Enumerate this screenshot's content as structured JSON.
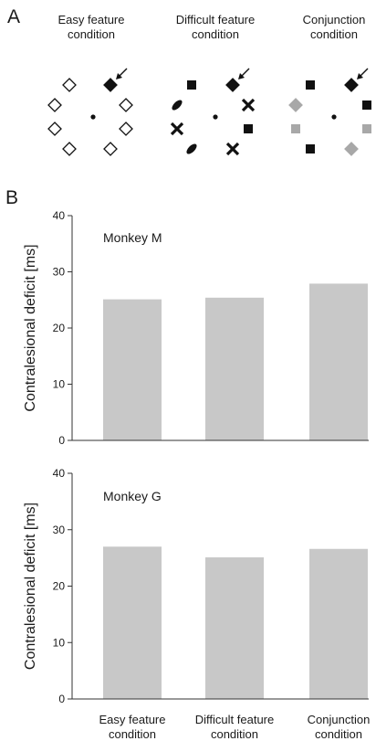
{
  "panel_a": {
    "letter": "A",
    "conditions": [
      {
        "title_line1": "Easy feature",
        "title_line2": "condition"
      },
      {
        "title_line1": "Difficult feature",
        "title_line2": "condition"
      },
      {
        "title_line1": "Conjunction",
        "title_line2": "condition"
      }
    ]
  },
  "panel_b": {
    "letter": "B"
  },
  "chart_data": [
    {
      "type": "bar",
      "title": "Monkey M",
      "ylabel": "Contralesional deficit [ms]",
      "ylim": [
        0,
        40
      ],
      "yticks": [
        0,
        10,
        20,
        30,
        40
      ],
      "categories": [
        "Easy feature condition",
        "Difficult feature condition",
        "Conjunction condition"
      ],
      "values": [
        25.1,
        25.4,
        27.9
      ],
      "bar_color": "#c8c8c8",
      "grid": false
    },
    {
      "type": "bar",
      "title": "Monkey G",
      "ylabel": "Contralesional deficit [ms]",
      "ylim": [
        0,
        40
      ],
      "yticks": [
        0,
        10,
        20,
        30,
        40
      ],
      "categories": [
        "Easy feature condition",
        "Difficult feature condition",
        "Conjunction condition"
      ],
      "values": [
        27.0,
        25.1,
        26.6
      ],
      "bar_color": "#c8c8c8",
      "grid": false
    }
  ],
  "xaxis_labels": [
    {
      "line1": "Easy feature",
      "line2": "condition"
    },
    {
      "line1": "Difficult feature",
      "line2": "condition"
    },
    {
      "line1": "Conjunction",
      "line2": "condition"
    }
  ]
}
